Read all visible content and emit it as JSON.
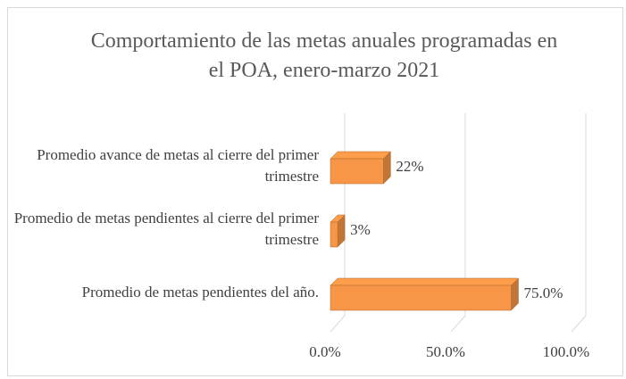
{
  "chart_data": {
    "type": "bar3d_horizontal",
    "title": "Comportamiento de las metas anuales programadas en el POA, enero-marzo 2021",
    "categories": [
      "Promedio avance de metas al cierre del primer trimestre",
      "Promedio de metas pendientes al cierre del primer trimestre",
      "Promedio de metas pendientes del año."
    ],
    "values": [
      22,
      3,
      75
    ],
    "value_labels": [
      "22%",
      "3%",
      "75.0%"
    ],
    "color": "#f79646",
    "xlim": [
      0,
      100
    ],
    "xticks": [
      {
        "value": 0,
        "label": "0.0%"
      },
      {
        "value": 50,
        "label": "50.0%"
      },
      {
        "value": 100,
        "label": "100.0%"
      }
    ],
    "grid": true
  }
}
